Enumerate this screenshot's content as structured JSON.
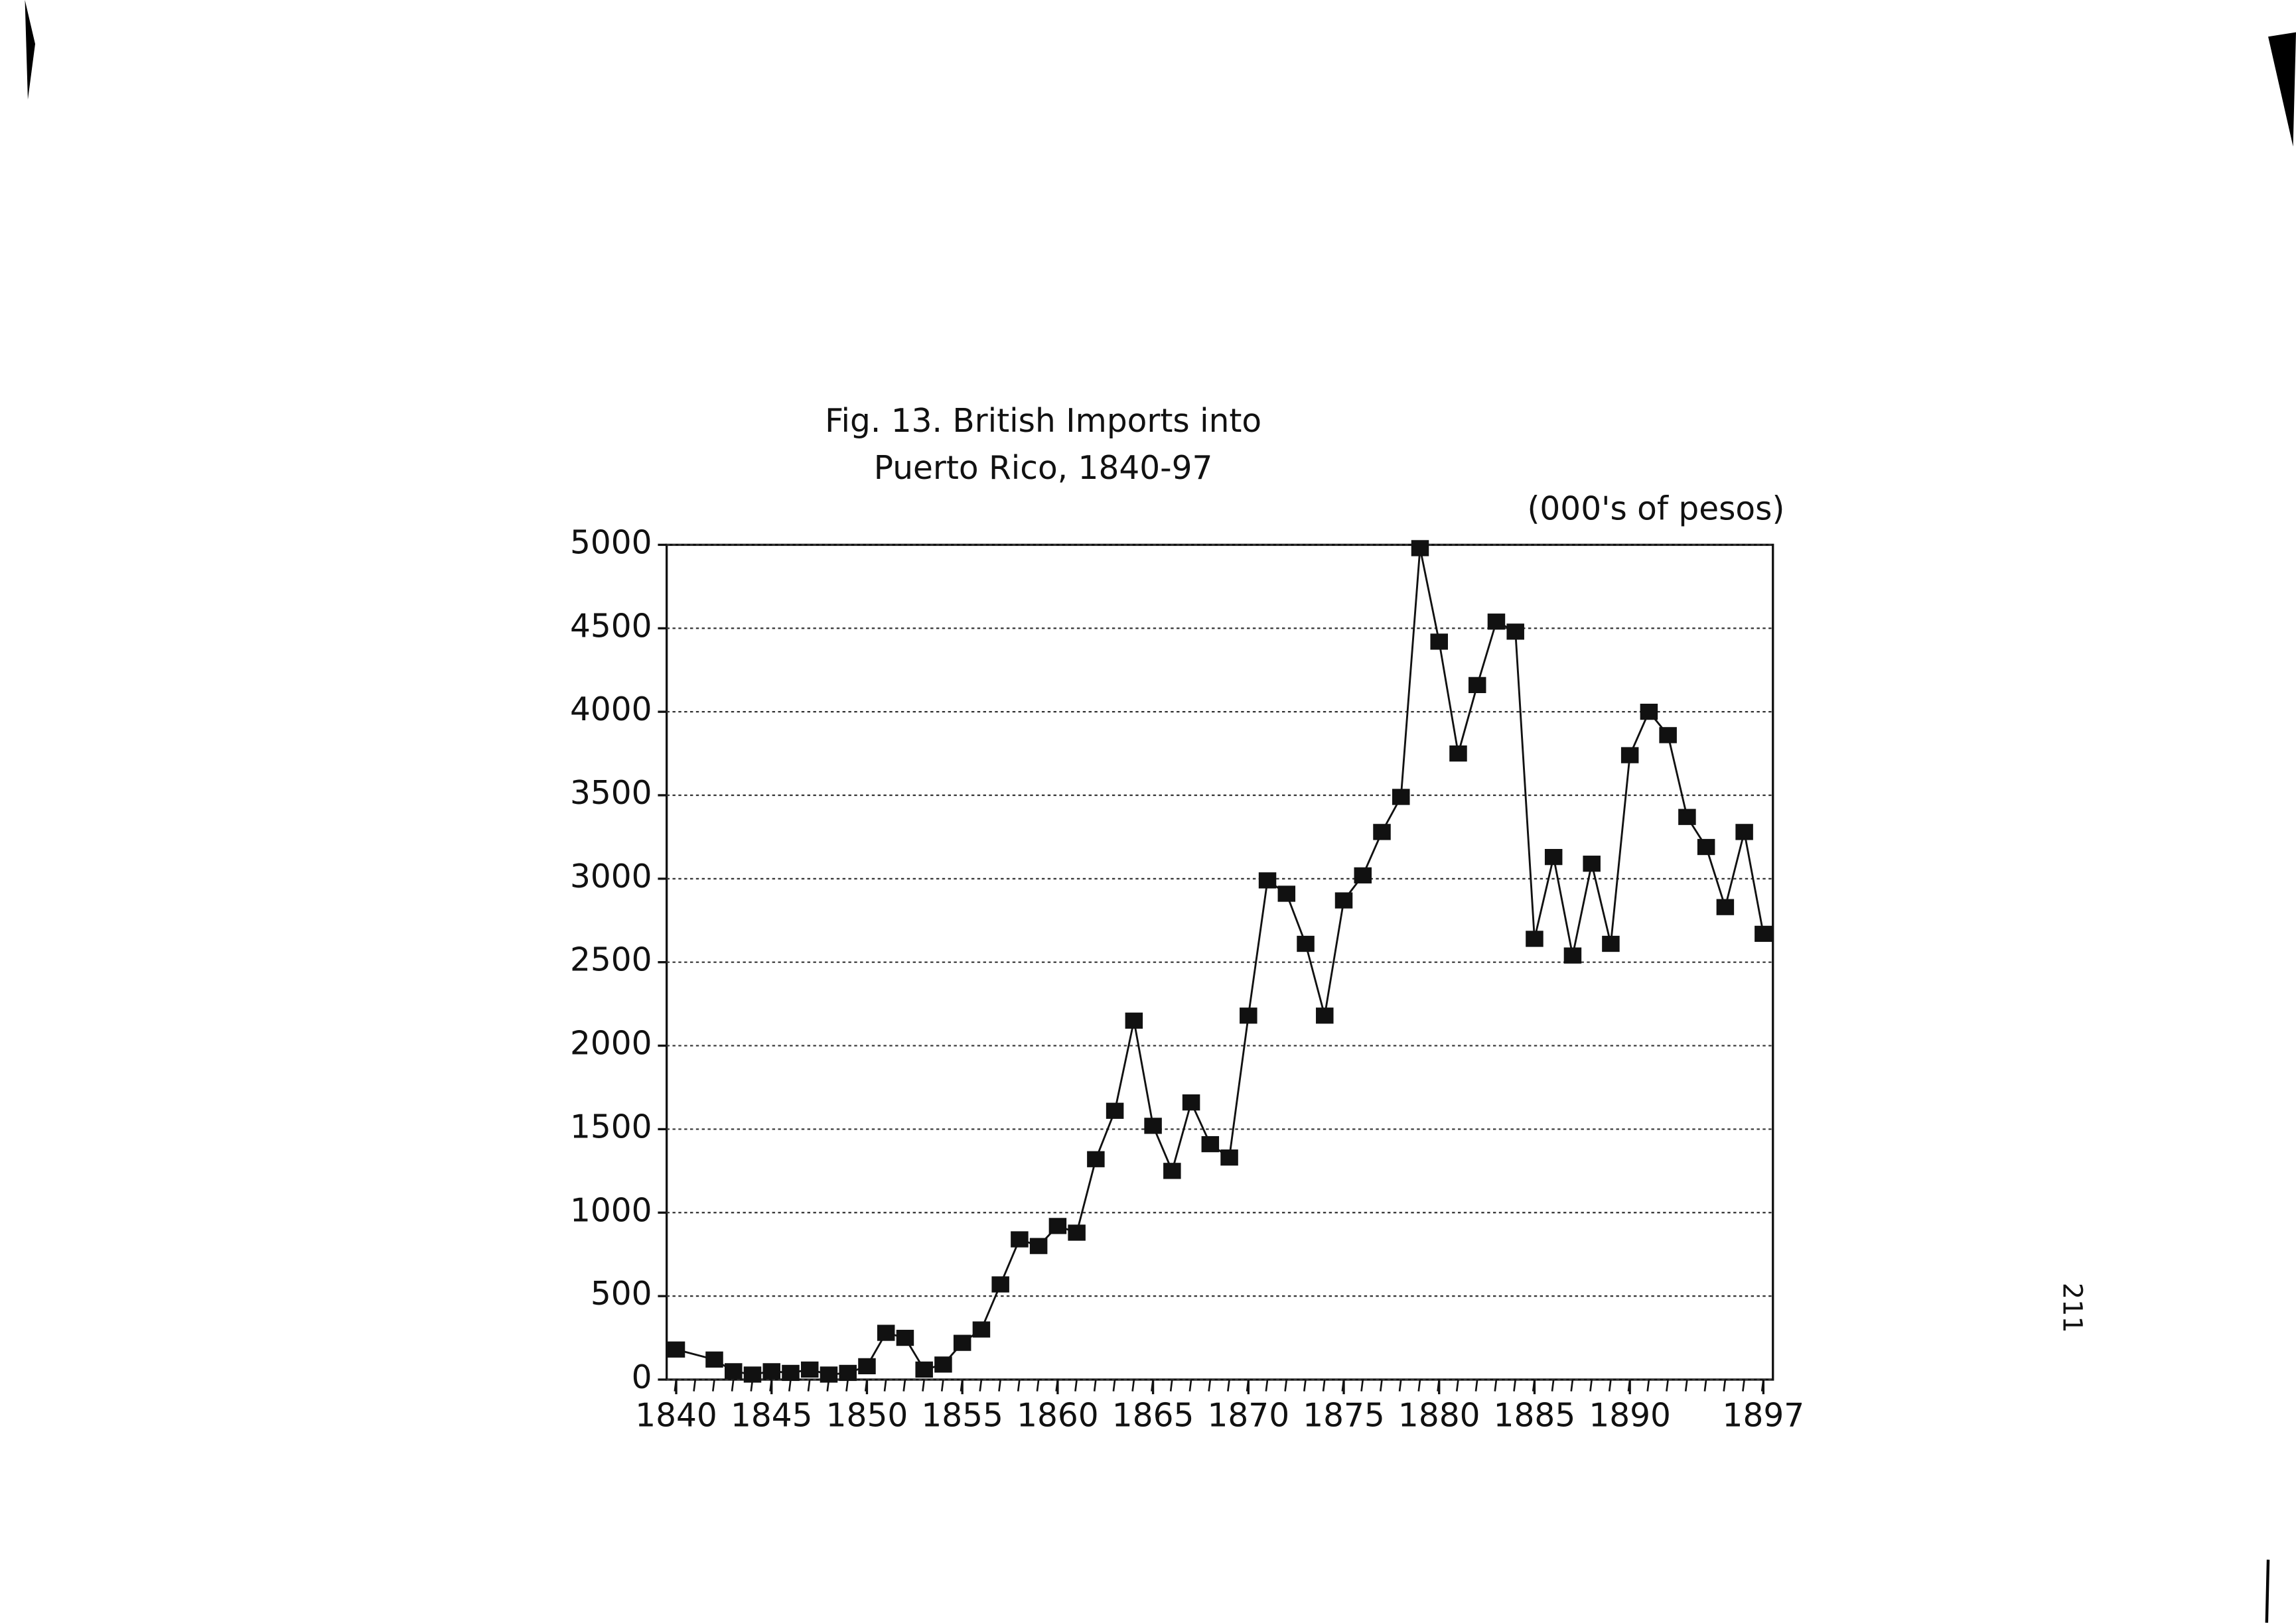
{
  "chart_data": {
    "type": "line",
    "title": [
      "Fig. 13. British Imports into",
      "Puerto Rico, 1840-97"
    ],
    "unit_label": "(000's of pesos)",
    "page_number": "211",
    "x": [
      1840,
      1842,
      1843,
      1844,
      1845,
      1846,
      1847,
      1848,
      1849,
      1850,
      1851,
      1852,
      1853,
      1854,
      1855,
      1856,
      1857,
      1858,
      1859,
      1860,
      1861,
      1862,
      1863,
      1864,
      1865,
      1866,
      1867,
      1868,
      1869,
      1870,
      1871,
      1872,
      1873,
      1874,
      1875,
      1876,
      1877,
      1878,
      1879,
      1880,
      1881,
      1882,
      1883,
      1884,
      1885,
      1886,
      1887,
      1888,
      1889,
      1890,
      1891,
      1892,
      1893,
      1894,
      1895,
      1896,
      1897
    ],
    "series": [
      {
        "color": "#111111",
        "values": [
          180,
          120,
          50,
          30,
          50,
          40,
          60,
          30,
          40,
          80,
          280,
          250,
          60,
          90,
          220,
          300,
          570,
          840,
          800,
          920,
          880,
          1320,
          1610,
          2150,
          1520,
          1250,
          1660,
          1410,
          1330,
          2180,
          2990,
          2910,
          2610,
          2180,
          2870,
          3020,
          3280,
          3490,
          4980,
          4420,
          3750,
          4160,
          4540,
          4480,
          2640,
          3130,
          2540,
          3090,
          2610,
          3740,
          4000,
          3860,
          3370,
          3190,
          2830,
          3280,
          2670
        ]
      }
    ],
    "xlim": [
      1839.5,
      1897.5
    ],
    "xticks": [
      1840,
      1845,
      1850,
      1855,
      1860,
      1865,
      1870,
      1875,
      1880,
      1885,
      1890,
      1897
    ],
    "xminorticks": [
      1840,
      1841,
      1842,
      1843,
      1844,
      1845,
      1846,
      1847,
      1848,
      1849,
      1850,
      1851,
      1852,
      1853,
      1854,
      1855,
      1856,
      1857,
      1858,
      1859,
      1860,
      1861,
      1862,
      1863,
      1864,
      1865,
      1866,
      1867,
      1868,
      1869,
      1870,
      1871,
      1872,
      1873,
      1874,
      1875,
      1876,
      1877,
      1878,
      1879,
      1880,
      1881,
      1882,
      1883,
      1884,
      1885,
      1886,
      1887,
      1888,
      1889,
      1890,
      1891,
      1892,
      1893,
      1894,
      1895,
      1896,
      1897
    ],
    "ylim": [
      0,
      5000
    ],
    "yticks": [
      0,
      500,
      1000,
      1500,
      2000,
      2500,
      3000,
      3500,
      4000,
      4500,
      5000
    ],
    "grid": true
  }
}
